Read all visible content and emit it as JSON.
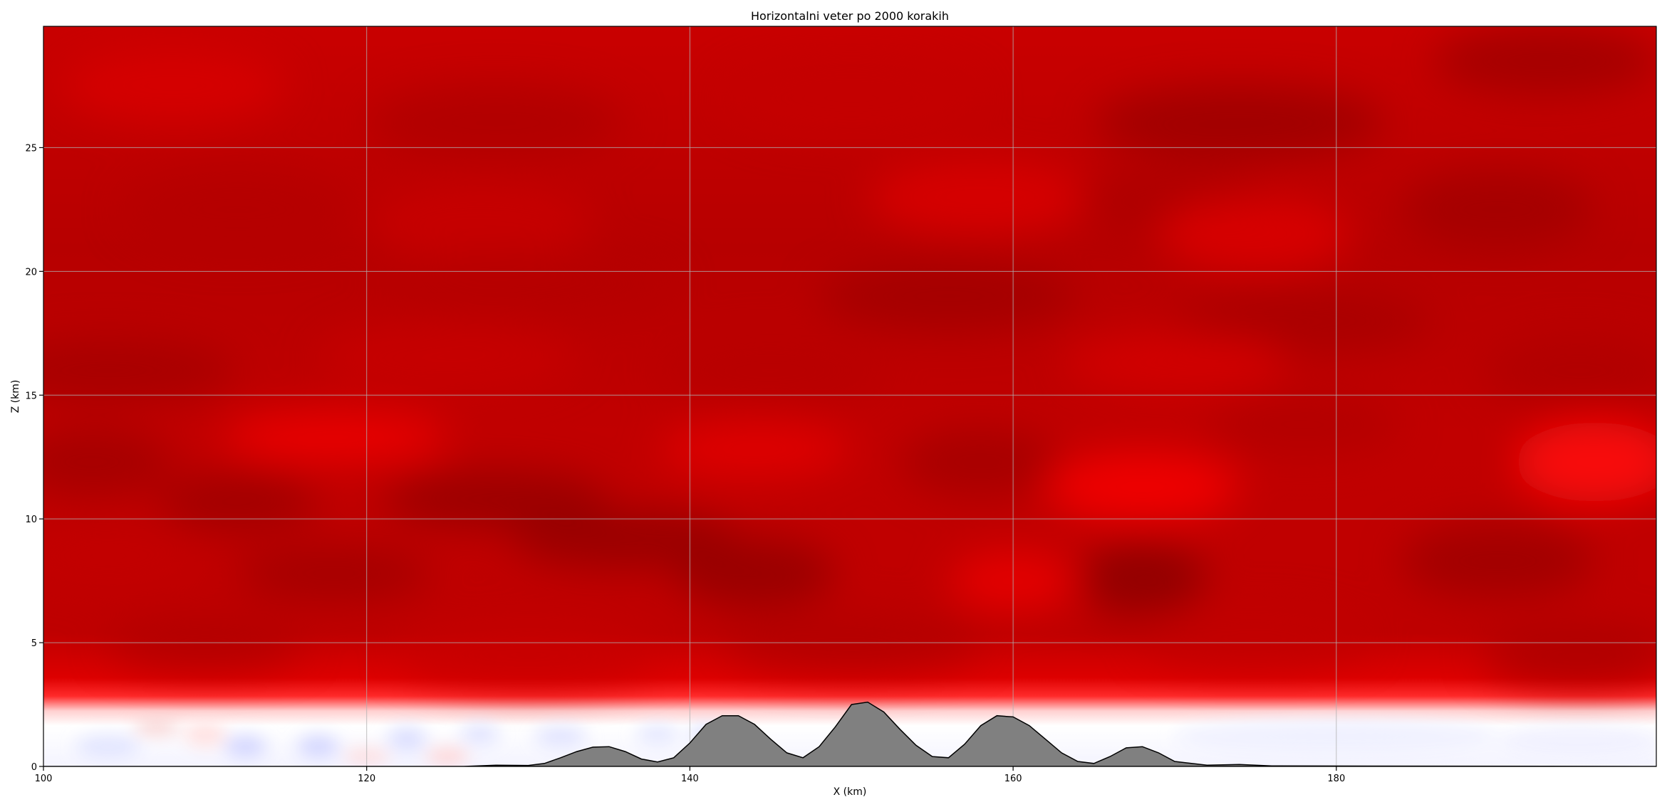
{
  "chart_data": {
    "type": "heatmap",
    "title": "Horizontalni veter po 2000 korakih",
    "xlabel": "X (km)",
    "ylabel": "Z (km)",
    "xlim": [
      100,
      199.8
    ],
    "ylim": [
      0,
      29.9
    ],
    "x_ticks": [
      100,
      120,
      140,
      160,
      180
    ],
    "y_ticks": [
      0,
      5,
      10,
      15,
      20,
      25
    ],
    "grid": true,
    "colormap": "bwr (white near zero, blue negative, red positive)",
    "colors": {
      "strong_positive": "#9a0000",
      "positive": "#e00000",
      "bright_positive": "#ff1a1a",
      "near_zero": "#ffffff",
      "weak_negative": "#dde0ff",
      "weak_positive": "#ffd6d6",
      "terrain_fill": "#808080",
      "terrain_edge": "#000000",
      "grid": "#b0b0b0"
    },
    "field_description_layers": [
      {
        "z_range": [
          0,
          2.6
        ],
        "value": "near zero, mixed weak negative/positive"
      },
      {
        "z_range": [
          2.6,
          3.2
        ],
        "value": "strong positive gradient"
      },
      {
        "z_range": [
          3.2,
          29.9
        ],
        "value": "strongly positive with patches"
      }
    ],
    "terrain": {
      "x": [
        100,
        126,
        128,
        130,
        131,
        132,
        133,
        134,
        135,
        136,
        137,
        138,
        139,
        140,
        141,
        142,
        143,
        144,
        145,
        146,
        147,
        148,
        149,
        150,
        151,
        152,
        153,
        154,
        155,
        156,
        157,
        158,
        159,
        160,
        161,
        162,
        163,
        164,
        165,
        166,
        167,
        168,
        169,
        170,
        172,
        174,
        176,
        199.8
      ],
      "z": [
        0,
        0,
        0.05,
        0.04,
        0.12,
        0.35,
        0.6,
        0.78,
        0.8,
        0.6,
        0.3,
        0.18,
        0.35,
        0.95,
        1.7,
        2.05,
        2.05,
        1.7,
        1.1,
        0.55,
        0.35,
        0.8,
        1.6,
        2.5,
        2.6,
        2.2,
        1.5,
        0.85,
        0.4,
        0.35,
        0.9,
        1.65,
        2.05,
        2.0,
        1.65,
        1.1,
        0.55,
        0.2,
        0.12,
        0.4,
        0.75,
        0.8,
        0.55,
        0.2,
        0.05,
        0.08,
        0.02,
        0
      ]
    }
  }
}
